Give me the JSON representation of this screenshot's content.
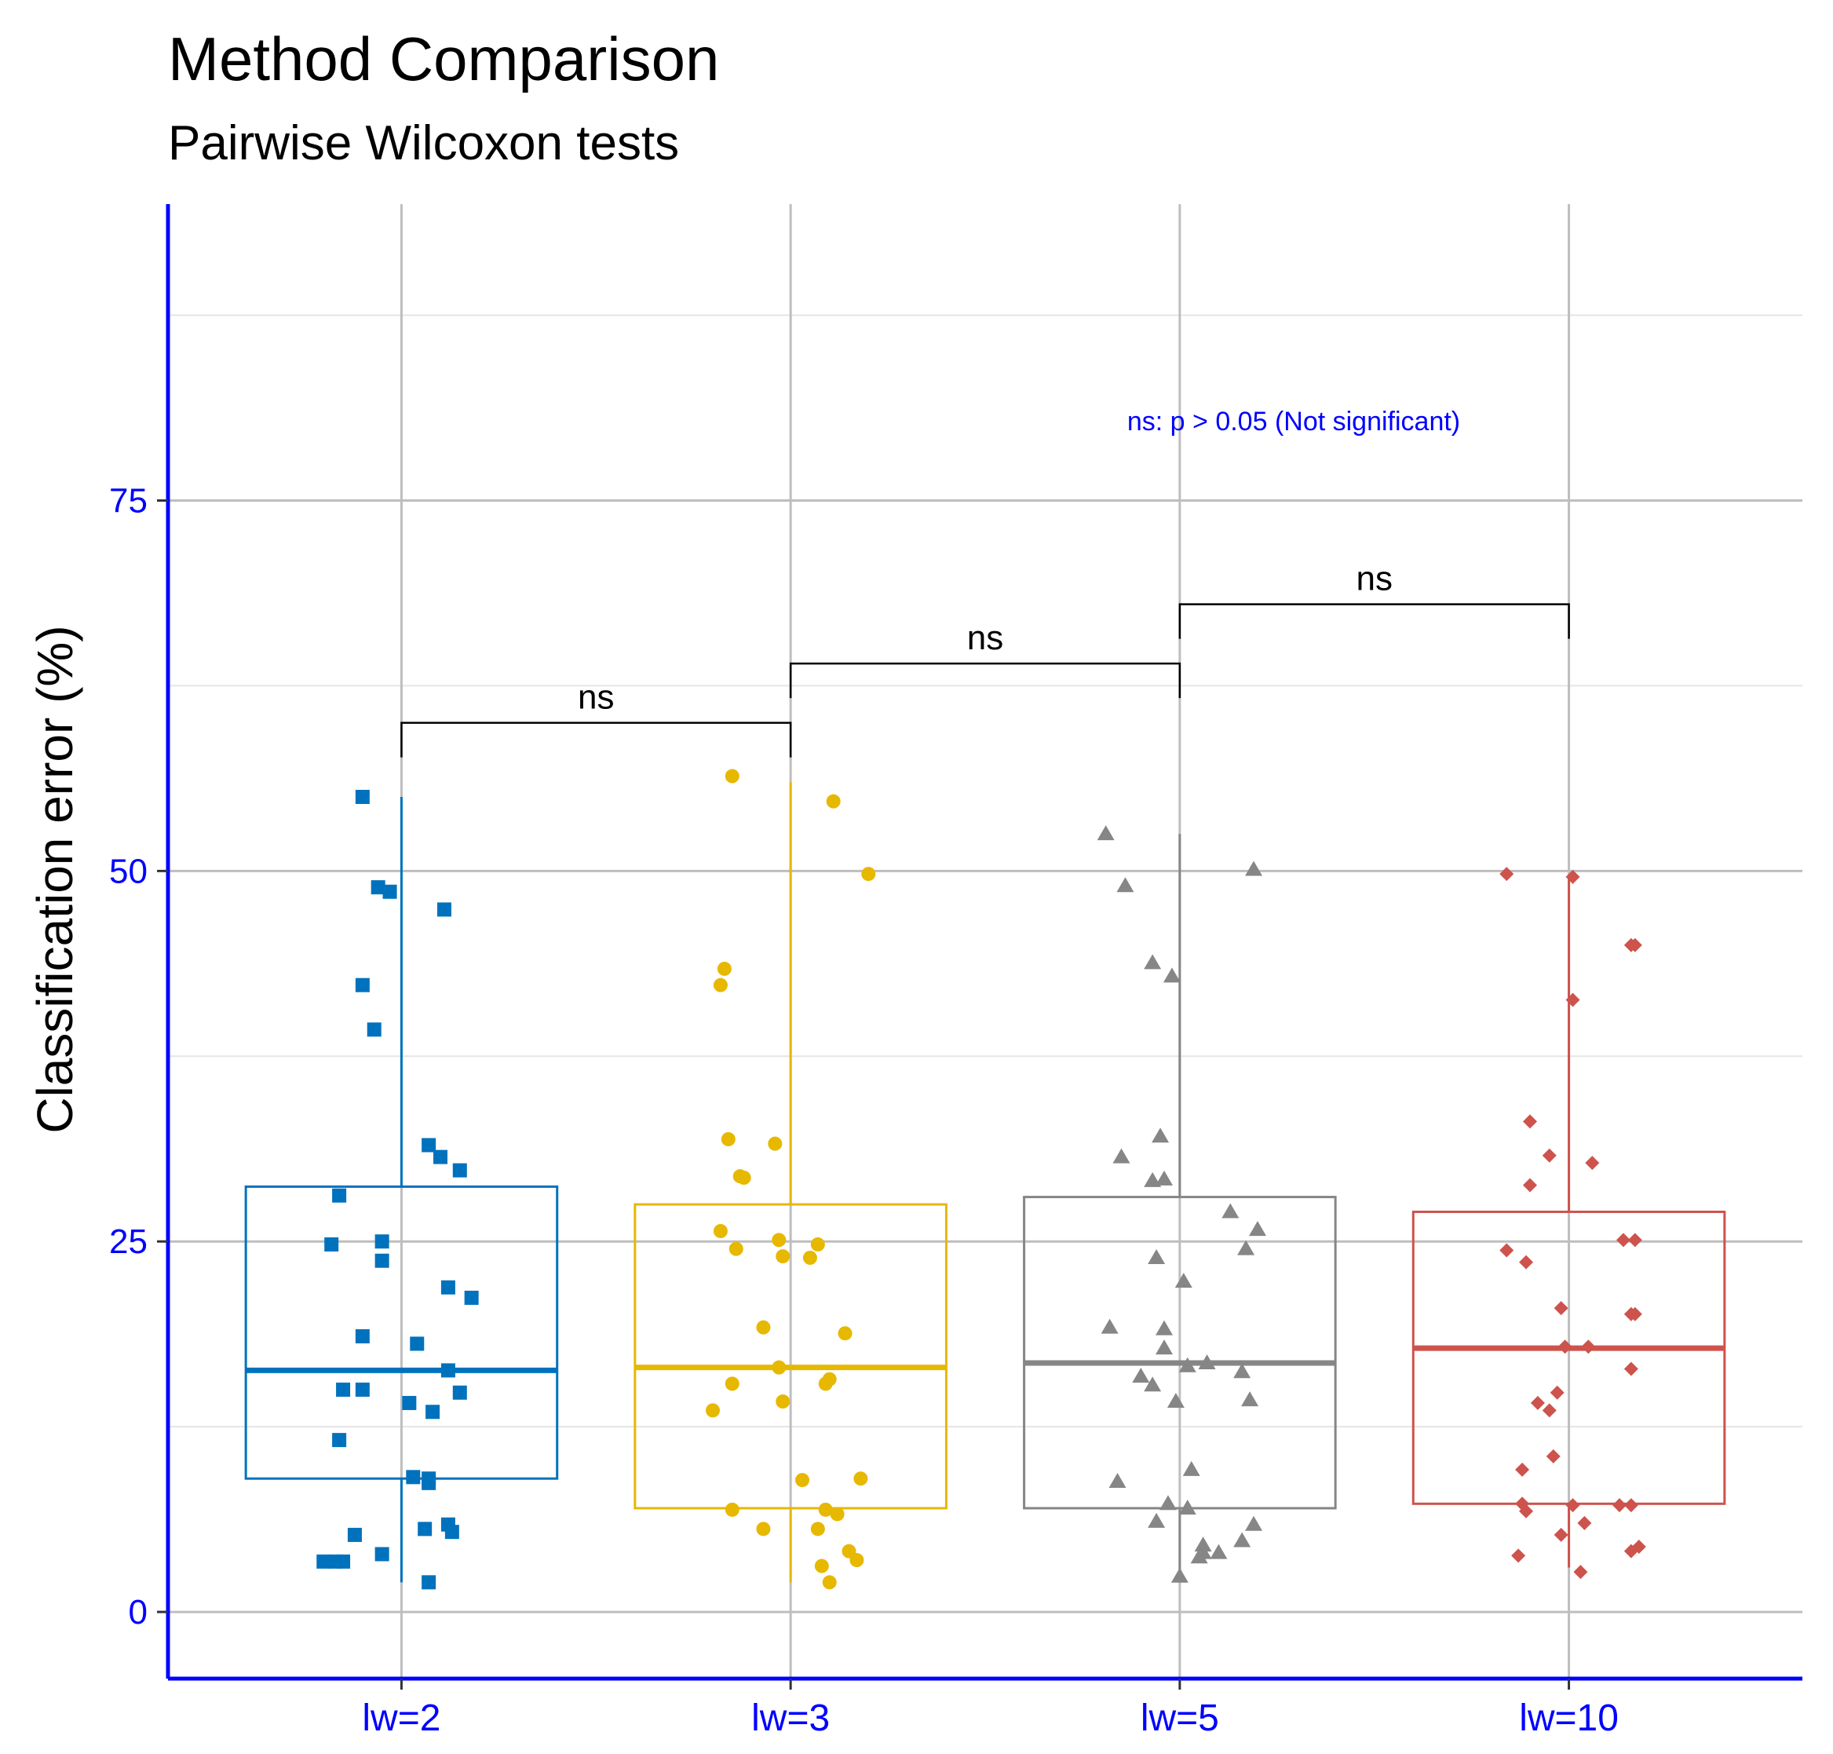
{
  "chart_data": {
    "type": "box",
    "title": "Method Comparison",
    "subtitle": "Pairwise Wilcoxon tests",
    "xlabel": "",
    "ylabel": "Classification error (%)",
    "ylim": [
      -4.5,
      95
    ],
    "yticks": [
      0,
      25,
      50,
      75
    ],
    "grid": true,
    "categories": [
      "lw=2",
      "lw=3",
      "lw=5",
      "lw=10"
    ],
    "annotation": "ns: p > 0.05 (Not significant)",
    "comparisons": [
      {
        "from": "lw=2",
        "to": "lw=3",
        "label": "ns",
        "y": 60.0
      },
      {
        "from": "lw=3",
        "to": "lw=5",
        "label": "ns",
        "y": 64.0
      },
      {
        "from": "lw=5",
        "to": "lw=10",
        "label": "ns",
        "y": 68.0
      }
    ],
    "groups": [
      {
        "category": "lw=2",
        "color": "#0072BD",
        "shape": "square",
        "box": {
          "whisker_low": 2.0,
          "q1": 9.0,
          "median": 16.3,
          "q3": 28.7,
          "whisker_high": 55.0
        },
        "points": [
          [
            -0.1,
            55.0
          ],
          [
            -0.06,
            48.9
          ],
          [
            -0.03,
            48.6
          ],
          [
            0.11,
            47.4
          ],
          [
            -0.1,
            42.3
          ],
          [
            -0.07,
            39.3
          ],
          [
            0.07,
            31.5
          ],
          [
            0.1,
            30.7
          ],
          [
            0.15,
            29.8
          ],
          [
            -0.16,
            28.1
          ],
          [
            -0.18,
            24.8
          ],
          [
            -0.05,
            25.0
          ],
          [
            -0.05,
            23.7
          ],
          [
            0.12,
            21.9
          ],
          [
            0.18,
            21.2
          ],
          [
            -0.1,
            18.6
          ],
          [
            0.04,
            18.1
          ],
          [
            0.12,
            16.3
          ],
          [
            0.15,
            14.8
          ],
          [
            -0.15,
            15.0
          ],
          [
            -0.1,
            15.0
          ],
          [
            0.02,
            14.1
          ],
          [
            0.08,
            13.5
          ],
          [
            -0.16,
            11.6
          ],
          [
            0.03,
            9.1
          ],
          [
            0.07,
            9.0
          ],
          [
            0.07,
            8.7
          ],
          [
            0.06,
            5.6
          ],
          [
            0.12,
            5.9
          ],
          [
            0.13,
            5.4
          ],
          [
            -0.12,
            5.2
          ],
          [
            -0.05,
            3.9
          ],
          [
            -0.2,
            3.4
          ],
          [
            -0.17,
            3.4
          ],
          [
            -0.15,
            3.4
          ],
          [
            0.07,
            2.0
          ]
        ]
      },
      {
        "category": "lw=3",
        "color": "#E7B800",
        "shape": "circle",
        "box": {
          "whisker_low": 2.0,
          "q1": 7.0,
          "median": 16.5,
          "q3": 27.5,
          "whisker_high": 56.0
        },
        "points": [
          [
            -0.15,
            56.4
          ],
          [
            0.11,
            54.7
          ],
          [
            0.2,
            49.8
          ],
          [
            -0.17,
            43.4
          ],
          [
            -0.18,
            42.3
          ],
          [
            -0.16,
            31.9
          ],
          [
            -0.04,
            31.6
          ],
          [
            -0.13,
            29.4
          ],
          [
            -0.12,
            29.3
          ],
          [
            -0.18,
            25.7
          ],
          [
            -0.14,
            24.5
          ],
          [
            -0.03,
            25.1
          ],
          [
            0.07,
            24.8
          ],
          [
            -0.02,
            24.0
          ],
          [
            0.05,
            23.9
          ],
          [
            -0.07,
            19.2
          ],
          [
            0.14,
            18.8
          ],
          [
            -0.03,
            16.5
          ],
          [
            0.1,
            15.7
          ],
          [
            0.09,
            15.4
          ],
          [
            -0.15,
            15.4
          ],
          [
            -0.02,
            14.2
          ],
          [
            -0.2,
            13.6
          ],
          [
            0.03,
            8.9
          ],
          [
            0.18,
            9.0
          ],
          [
            -0.15,
            6.9
          ],
          [
            0.09,
            6.9
          ],
          [
            0.12,
            6.6
          ],
          [
            -0.07,
            5.6
          ],
          [
            0.07,
            5.6
          ],
          [
            0.15,
            4.1
          ],
          [
            0.17,
            3.5
          ],
          [
            0.08,
            3.1
          ],
          [
            0.1,
            2.0
          ]
        ]
      },
      {
        "category": "lw=5",
        "color": "#868686",
        "shape": "triangle",
        "box": {
          "whisker_low": 2.0,
          "q1": 7.0,
          "median": 16.8,
          "q3": 28.0,
          "whisker_high": 52.5
        },
        "points": [
          [
            -0.19,
            52.5
          ],
          [
            -0.14,
            49.0
          ],
          [
            0.19,
            50.1
          ],
          [
            -0.07,
            43.8
          ],
          [
            -0.02,
            42.9
          ],
          [
            -0.05,
            32.1
          ],
          [
            -0.15,
            30.7
          ],
          [
            -0.07,
            29.1
          ],
          [
            -0.04,
            29.2
          ],
          [
            0.13,
            27.0
          ],
          [
            0.2,
            25.8
          ],
          [
            0.17,
            24.5
          ],
          [
            -0.06,
            23.9
          ],
          [
            0.01,
            22.3
          ],
          [
            -0.18,
            19.2
          ],
          [
            -0.04,
            19.1
          ],
          [
            -0.04,
            17.8
          ],
          [
            0.02,
            16.6
          ],
          [
            0.07,
            16.8
          ],
          [
            0.16,
            16.2
          ],
          [
            -0.1,
            15.9
          ],
          [
            -0.07,
            15.3
          ],
          [
            -0.01,
            14.2
          ],
          [
            0.18,
            14.3
          ],
          [
            -0.16,
            8.8
          ],
          [
            0.03,
            9.6
          ],
          [
            -0.03,
            7.3
          ],
          [
            0.02,
            7.0
          ],
          [
            0.06,
            4.5
          ],
          [
            0.16,
            4.8
          ],
          [
            0.19,
            5.9
          ],
          [
            -0.06,
            6.1
          ],
          [
            0.06,
            4.0
          ],
          [
            0.1,
            4.0
          ],
          [
            0.05,
            3.7
          ],
          [
            0.0,
            2.4
          ]
        ]
      },
      {
        "category": "lw=10",
        "color": "#CD534C",
        "shape": "diamond",
        "box": {
          "whisker_low": 3.0,
          "q1": 7.3,
          "median": 17.8,
          "q3": 27.0,
          "whisker_high": 49.6
        },
        "points": [
          [
            -0.16,
            49.8
          ],
          [
            0.01,
            49.6
          ],
          [
            0.16,
            45.0
          ],
          [
            0.17,
            45.0
          ],
          [
            0.01,
            41.3
          ],
          [
            -0.1,
            33.1
          ],
          [
            -0.05,
            30.8
          ],
          [
            0.06,
            30.3
          ],
          [
            -0.1,
            28.8
          ],
          [
            0.14,
            25.1
          ],
          [
            0.17,
            25.1
          ],
          [
            -0.16,
            24.4
          ],
          [
            -0.11,
            23.6
          ],
          [
            -0.02,
            20.5
          ],
          [
            0.17,
            20.1
          ],
          [
            0.16,
            20.1
          ],
          [
            -0.01,
            17.9
          ],
          [
            0.05,
            17.9
          ],
          [
            0.16,
            16.4
          ],
          [
            -0.08,
            14.1
          ],
          [
            -0.03,
            14.8
          ],
          [
            -0.05,
            13.6
          ],
          [
            -0.04,
            10.5
          ],
          [
            -0.12,
            9.6
          ],
          [
            -0.12,
            7.3
          ],
          [
            -0.11,
            6.8
          ],
          [
            0.01,
            7.2
          ],
          [
            0.13,
            7.2
          ],
          [
            0.16,
            7.2
          ],
          [
            0.04,
            6.0
          ],
          [
            -0.02,
            5.2
          ],
          [
            -0.13,
            3.8
          ],
          [
            0.16,
            4.1
          ],
          [
            0.18,
            4.4
          ],
          [
            0.03,
            2.7
          ]
        ]
      }
    ]
  },
  "colors": {
    "axis": "#0000FF",
    "tick_text": "#0000FF",
    "grid_major": "#BEBEBE",
    "grid_minor": "#E5E5E5",
    "bracket": "#000000"
  }
}
